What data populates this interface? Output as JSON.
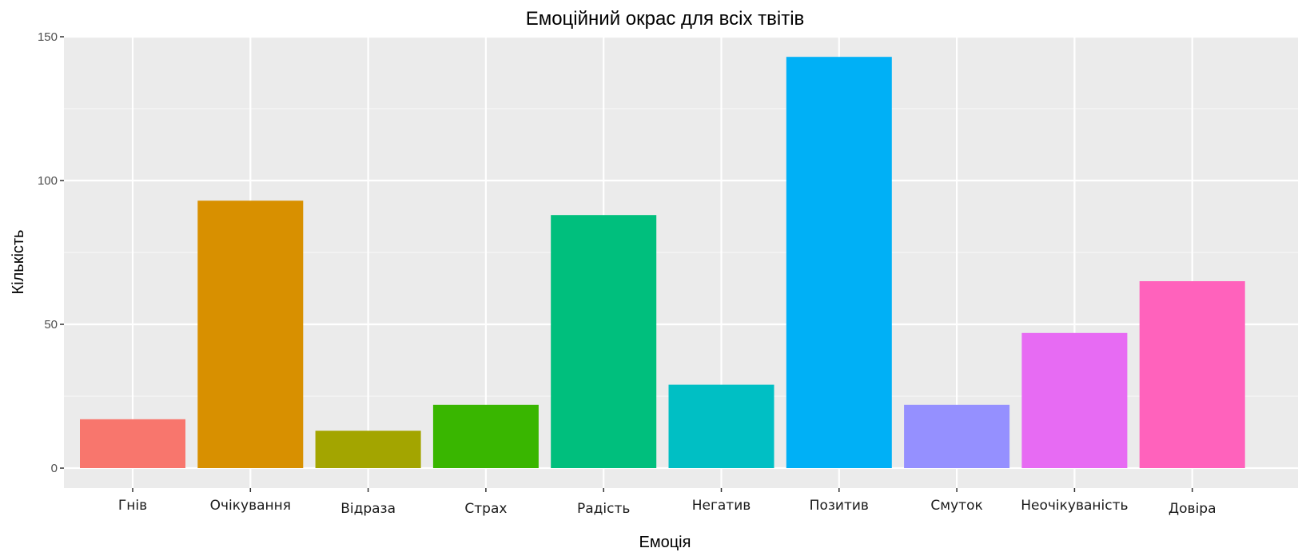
{
  "chart_data": {
    "type": "bar",
    "title": "Емоційний окрас для всіх твітів",
    "xlabel": "Емоція",
    "ylabel": "Кількість",
    "categories": [
      "Гнів",
      "Очікування",
      "Відраза",
      "Страх",
      "Радість",
      "Негатив",
      "Позитив",
      "Смуток",
      "Неочікуваність",
      "Довіра"
    ],
    "values": [
      17,
      93,
      13,
      22,
      88,
      29,
      143,
      22,
      47,
      65
    ],
    "colors": [
      "#F8766D",
      "#D89000",
      "#A3A500",
      "#39B600",
      "#00BF7D",
      "#00BFC4",
      "#00B0F6",
      "#9590FF",
      "#E76BF3",
      "#FF62BC"
    ],
    "yticks": [
      0,
      50,
      100,
      150
    ],
    "ylim": [
      0,
      150
    ],
    "grid": true,
    "legend": "none",
    "background": "#EBEBEB"
  }
}
